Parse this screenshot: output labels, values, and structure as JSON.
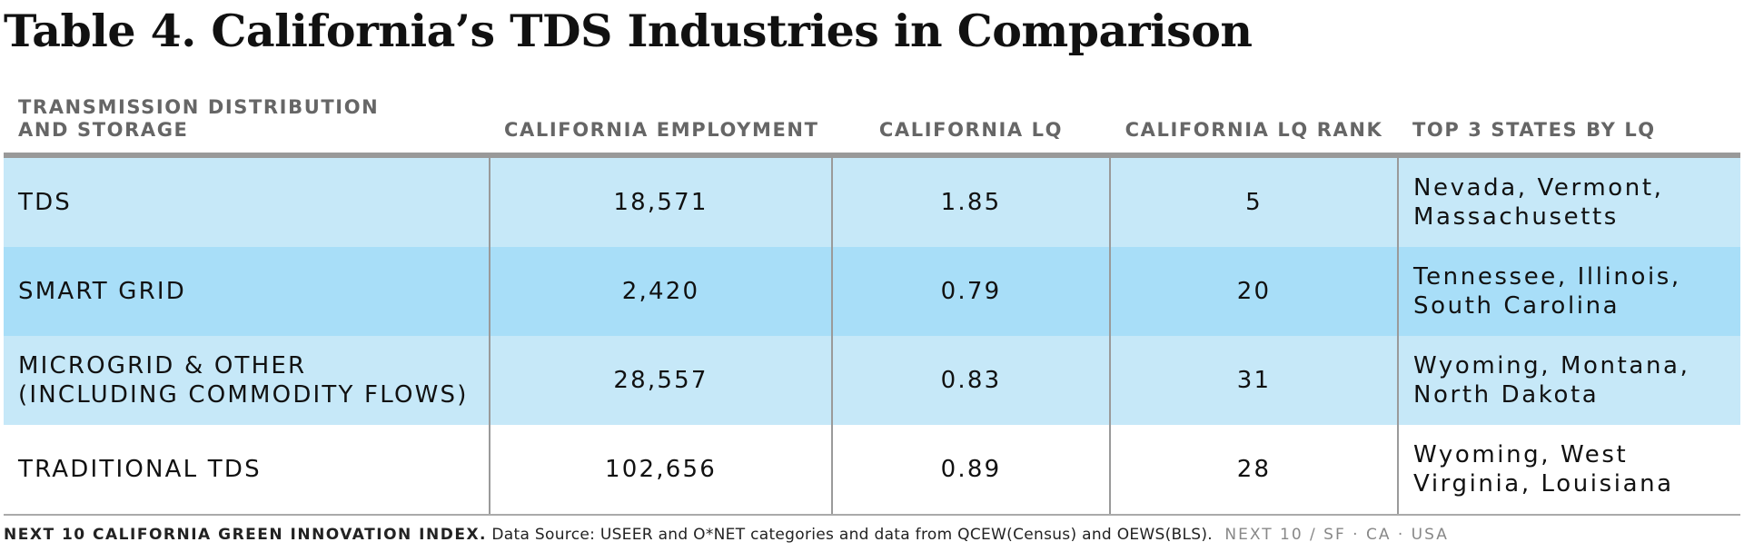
{
  "title": "Table 4. California’s TDS Industries in Comparison",
  "table": {
    "headers": [
      "TRANSMISSION DISTRIBUTION\nAND STORAGE",
      "CALIFORNIA EMPLOYMENT",
      "CALIFORNIA LQ",
      "CALIFORNIA LQ RANK",
      "TOP 3 STATES BY LQ"
    ],
    "rows": [
      {
        "category": "TDS",
        "employment": "18,571",
        "lq": "1.85",
        "rank": "5",
        "top_states": "Nevada, Vermont, Massachusetts"
      },
      {
        "category": "SMART GRID",
        "employment": "2,420",
        "lq": "0.79",
        "rank": "20",
        "top_states": "Tennessee, Illinois, South Carolina"
      },
      {
        "category": "MICROGRID & OTHER (INCLUDING COMMODITY FLOWS)",
        "employment": "28,557",
        "lq": "0.83",
        "rank": "31",
        "top_states": "Wyoming, Montana, North Dakota"
      },
      {
        "category": "TRADITIONAL TDS",
        "employment": "102,656",
        "lq": "0.89",
        "rank": "28",
        "top_states": "Wyoming, West Virginia, Louisiana"
      }
    ]
  },
  "footer": {
    "brand": "NEXT 10 CALIFORNIA GREEN INNOVATION INDEX.",
    "source": "Data Source: USEER and O*NET categories and data from QCEW(Census) and OEWS(BLS).",
    "org": "NEXT 10  /  SF · CA · USA"
  },
  "colors": {
    "row_light_blue": "#c6e8f8",
    "row_mid_blue": "#a8def8",
    "header_text_gray": "#666666",
    "header_rule_gray": "#999999"
  }
}
